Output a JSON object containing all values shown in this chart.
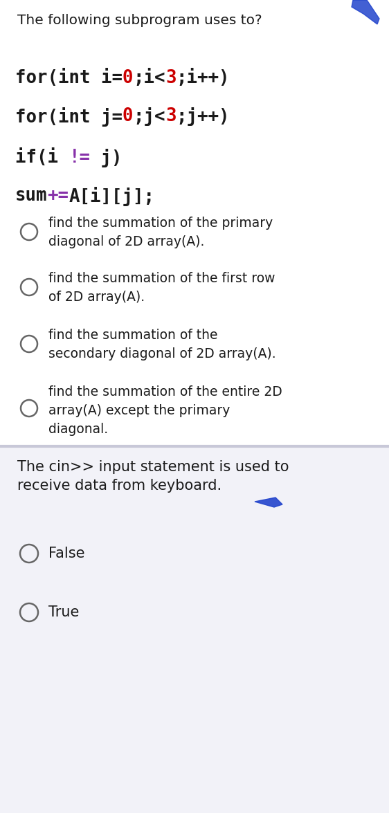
{
  "bg_color": "#ffffff",
  "section2_bg": "#f0f0f8",
  "question1": "The following subprogram uses to?",
  "code_line1_black": "for(int i=",
  "code_line1_red": "0",
  "code_line1_black2": ";i<",
  "code_line1_red2": "3",
  "code_line1_black3": ";i++)",
  "code_line2_black": "for(int j=",
  "code_line2_red": "0",
  "code_line2_black2": ";j<",
  "code_line2_red2": "3",
  "code_line2_black3": ";j++)",
  "code_line3_black1": "if(i ",
  "code_line3_purple": "!=",
  "code_line3_black2": " j)",
  "code_line4_black1": "sum",
  "code_line4_purple": "+=",
  "code_line4_black2": "A[i][j];",
  "options1": [
    "find the summation of the primary\ndiagonal of 2D array(A).",
    "find the summation of the first row\nof 2D array(A).",
    "find the summation of the\nsecondary diagonal of 2D array(A).",
    "find the summation of the entire 2D\narray(A) except the primary\ndiagonal."
  ],
  "question2": "The cin>> input statement is used to\nreceive data from keyboard.",
  "options2": [
    "False",
    "True"
  ],
  "black": "#1a1a1a",
  "red": "#cc0000",
  "purple": "#8833aa",
  "gray_circle": "#666666",
  "divider_color": "#c8c8d8",
  "section2_color": "#f2f2f8"
}
